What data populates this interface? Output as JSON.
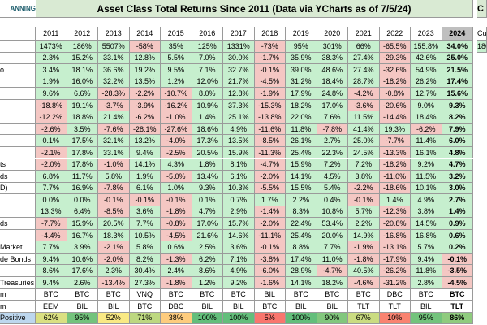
{
  "header": {
    "logo": "ANNING",
    "title": "Asset Class Total Returns Since 2011 (Data via YCharts as of 7/5/24)",
    "side_top": "C",
    "side_sub": "Cu",
    "side_first": "180"
  },
  "table": {
    "columns": [
      "2011",
      "2012",
      "2013",
      "2014",
      "2015",
      "2016",
      "2017",
      "2018",
      "2019",
      "2020",
      "2021",
      "2022",
      "2023",
      "2024"
    ],
    "rows": [
      {
        "cells": [
          "1473%",
          "186%",
          "5507%",
          "-58%",
          "35%",
          "125%",
          "1331%",
          "-73%",
          "95%",
          "301%",
          "66%",
          "-65.5%",
          "155.8%",
          "34.0%"
        ]
      },
      {
        "cells": [
          "2.3%",
          "15.2%",
          "33.1%",
          "12.8%",
          "5.5%",
          "7.0%",
          "30.0%",
          "-1.7%",
          "35.9%",
          "38.3%",
          "27.4%",
          "-29.3%",
          "42.6%",
          "25.0%"
        ]
      },
      {
        "label": "o",
        "cells": [
          "3.4%",
          "18.1%",
          "36.6%",
          "19.2%",
          "9.5%",
          "7.1%",
          "32.7%",
          "-0.1%",
          "39.0%",
          "48.6%",
          "27.4%",
          "-32.6%",
          "54.9%",
          "21.5%"
        ]
      },
      {
        "cells": [
          "1.9%",
          "16.0%",
          "32.2%",
          "13.5%",
          "1.2%",
          "12.0%",
          "21.7%",
          "-4.5%",
          "31.2%",
          "18.4%",
          "28.7%",
          "-18.2%",
          "26.2%",
          "17.4%"
        ]
      },
      {
        "cells": [
          "9.6%",
          "6.6%",
          "-28.3%",
          "-2.2%",
          "-10.7%",
          "8.0%",
          "12.8%",
          "-1.9%",
          "17.9%",
          "24.8%",
          "-4.2%",
          "-0.8%",
          "12.7%",
          "15.6%"
        ]
      },
      {
        "cells": [
          "-18.8%",
          "19.1%",
          "-3.7%",
          "-3.9%",
          "-16.2%",
          "10.9%",
          "37.3%",
          "-15.3%",
          "18.2%",
          "17.0%",
          "-3.6%",
          "-20.6%",
          "9.0%",
          "9.3%"
        ]
      },
      {
        "cells": [
          "-12.2%",
          "18.8%",
          "21.4%",
          "-6.2%",
          "-1.0%",
          "1.4%",
          "25.1%",
          "-13.8%",
          "22.0%",
          "7.6%",
          "11.5%",
          "-14.4%",
          "18.4%",
          "8.2%"
        ]
      },
      {
        "cells": [
          "-2.6%",
          "3.5%",
          "-7.6%",
          "-28.1%",
          "-27.6%",
          "18.6%",
          "4.9%",
          "-11.6%",
          "11.8%",
          "-7.8%",
          "41.4%",
          "19.3%",
          "-6.2%",
          "7.9%"
        ]
      },
      {
        "cells": [
          "0.1%",
          "17.5%",
          "32.1%",
          "13.2%",
          "-4.0%",
          "17.3%",
          "13.5%",
          "-8.5%",
          "26.1%",
          "2.7%",
          "25.0%",
          "-7.7%",
          "11.4%",
          "6.0%"
        ]
      },
      {
        "cells": [
          "-2.1%",
          "17.8%",
          "33.1%",
          "9.4%",
          "-2.5%",
          "20.5%",
          "15.9%",
          "-11.3%",
          "25.4%",
          "22.3%",
          "24.5%",
          "-13.3%",
          "16.1%",
          "4.8%"
        ]
      },
      {
        "label": "ts",
        "cells": [
          "-2.0%",
          "17.8%",
          "-1.0%",
          "14.1%",
          "4.3%",
          "1.8%",
          "8.1%",
          "-4.7%",
          "15.9%",
          "7.2%",
          "7.2%",
          "-18.2%",
          "9.2%",
          "4.7%"
        ]
      },
      {
        "label": "ds",
        "cells": [
          "6.8%",
          "11.7%",
          "5.8%",
          "1.9%",
          "-5.0%",
          "13.4%",
          "6.1%",
          "-2.0%",
          "14.1%",
          "4.5%",
          "3.8%",
          "-11.0%",
          "11.5%",
          "3.2%"
        ]
      },
      {
        "label": "D)",
        "cells": [
          "7.7%",
          "16.9%",
          "-7.8%",
          "6.1%",
          "1.0%",
          "9.3%",
          "10.3%",
          "-5.5%",
          "15.5%",
          "5.4%",
          "-2.2%",
          "-18.6%",
          "10.1%",
          "3.0%"
        ]
      },
      {
        "cells": [
          "0.0%",
          "0.0%",
          "-0.1%",
          "-0.1%",
          "-0.1%",
          "0.1%",
          "0.7%",
          "1.7%",
          "2.2%",
          "0.4%",
          "-0.1%",
          "1.4%",
          "4.9%",
          "2.7%"
        ]
      },
      {
        "cells": [
          "13.3%",
          "6.4%",
          "-8.5%",
          "3.6%",
          "-1.8%",
          "4.7%",
          "2.9%",
          "-1.4%",
          "8.3%",
          "10.8%",
          "5.7%",
          "-12.3%",
          "3.8%",
          "1.4%"
        ]
      },
      {
        "label": "ds",
        "cells": [
          "-7.7%",
          "15.9%",
          "20.5%",
          "7.7%",
          "-0.8%",
          "17.0%",
          "15.7%",
          "-2.0%",
          "22.4%",
          "53.4%",
          "2.2%",
          "-20.8%",
          "14.5%",
          "0.9%"
        ]
      },
      {
        "cells": [
          "-4.4%",
          "16.7%",
          "18.3%",
          "10.5%",
          "-4.5%",
          "21.6%",
          "14.6%",
          "-11.1%",
          "25.4%",
          "20.0%",
          "14.9%",
          "-16.8%",
          "16.8%",
          "0.6%"
        ]
      },
      {
        "label": "Market",
        "cells": [
          "7.7%",
          "3.9%",
          "-2.1%",
          "5.8%",
          "0.6%",
          "2.5%",
          "3.6%",
          "-0.1%",
          "8.8%",
          "7.7%",
          "-1.9%",
          "-13.1%",
          "5.7%",
          "0.2%"
        ]
      },
      {
        "label": "de Bonds",
        "cells": [
          "9.4%",
          "10.6%",
          "-2.0%",
          "8.2%",
          "-1.3%",
          "6.2%",
          "7.1%",
          "-3.8%",
          "17.4%",
          "11.0%",
          "-1.8%",
          "-17.9%",
          "9.4%",
          "-0.1%"
        ]
      },
      {
        "cells": [
          "8.6%",
          "17.6%",
          "2.3%",
          "30.4%",
          "2.4%",
          "8.6%",
          "4.9%",
          "-6.0%",
          "28.9%",
          "-4.7%",
          "40.5%",
          "-26.2%",
          "11.8%",
          "-3.5%"
        ]
      },
      {
        "label": "Treasuries",
        "cells": [
          "9.4%",
          "2.6%",
          "-13.4%",
          "27.3%",
          "-1.8%",
          "1.2%",
          "9.2%",
          "-1.6%",
          "14.1%",
          "18.2%",
          "-4.6%",
          "-31.2%",
          "2.8%",
          "-4.5%"
        ]
      },
      {
        "label": "m",
        "cells": [
          "BTC",
          "BTC",
          "BTC",
          "VNQ",
          "BTC",
          "BTC",
          "BTC",
          "BIL",
          "BTC",
          "BTC",
          "BTC",
          "DBC",
          "BTC",
          "BTC"
        ]
      },
      {
        "label": "m",
        "cells": [
          "EEM",
          "BIL",
          "BIL",
          "BTC",
          "DBC",
          "BIL",
          "BIL",
          "BTC",
          "BIL",
          "BIL",
          "TLT",
          "TLT",
          "BIL",
          "TLT"
        ]
      },
      {
        "label": "Positive",
        "cells": [
          "62%",
          "95%",
          "52%",
          "71%",
          "38%",
          "100%",
          "100%",
          "5%",
          "100%",
          "90%",
          "67%",
          "10%",
          "95%",
          "86%"
        ]
      }
    ]
  }
}
